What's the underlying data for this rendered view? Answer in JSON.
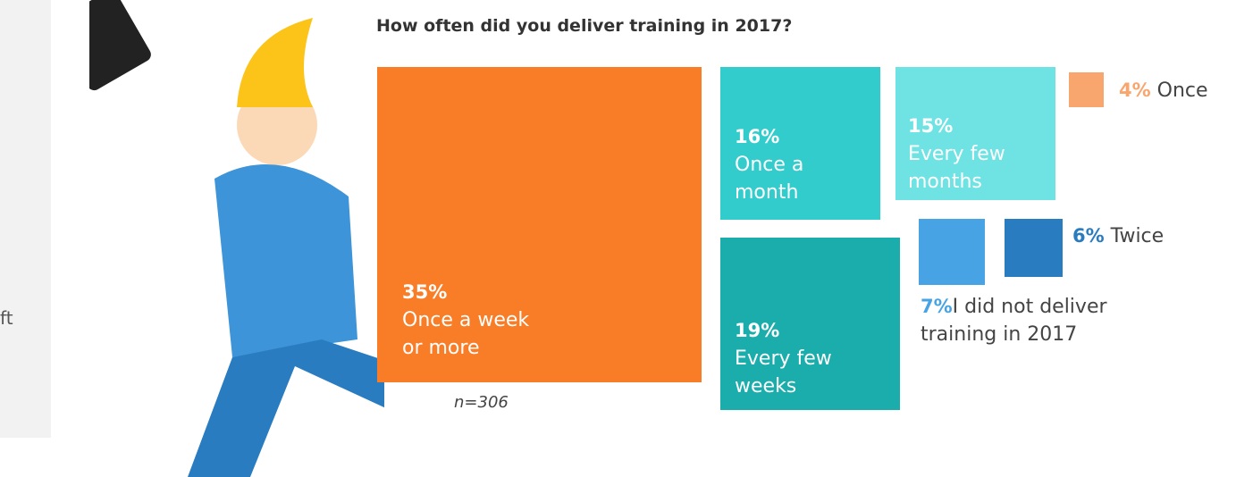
{
  "side_text": "ft",
  "chart_data": {
    "type": "treemap",
    "title": "How often did you deliver training in 2017?",
    "note": "n=306",
    "categories": [
      "Once a week or more",
      "Once a month",
      "Every few weeks",
      "Every few months",
      "Once",
      "I did not deliver training in 2017",
      "Twice"
    ],
    "values": [
      35,
      16,
      19,
      15,
      4,
      7,
      6
    ],
    "value_labels": [
      "35%",
      "16%",
      "19%",
      "15%",
      "4%",
      "7%",
      "6%"
    ],
    "colors": [
      "#f97d26",
      "#33cccc",
      "#1aadab",
      "#6fe3e3",
      "#f9a56e",
      "#47a3e3",
      "#2a7cc0"
    ]
  }
}
